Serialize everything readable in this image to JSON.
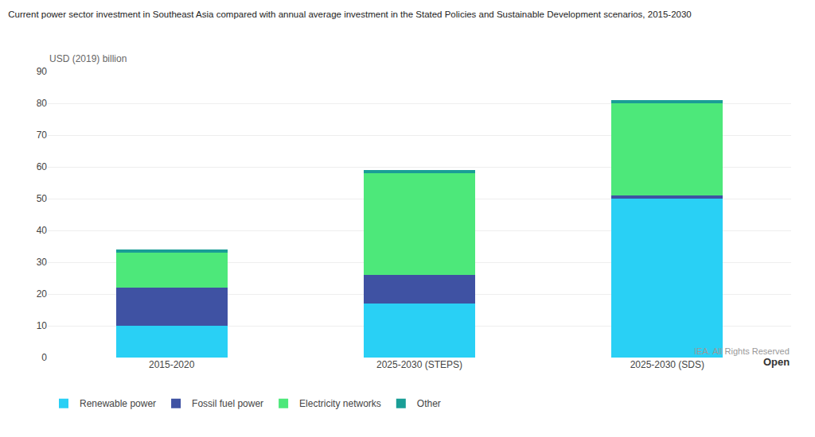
{
  "chart_data": {
    "type": "bar",
    "stacked": true,
    "title": "Current power sector investment in Southeast Asia compared with annual average investment in the Stated Policies and Sustainable Development scenarios, 2015-2030",
    "ylabel": "USD (2019) billion",
    "annotations": [
      "Open",
      "IEA. All Rights Reserved"
    ],
    "categories": [
      "2015-2020",
      "2025-2030 (STEPS)",
      "2025-2030 (SDS)"
    ],
    "series": [
      {
        "name": "Renewable power",
        "color": "#29d0f5",
        "values": [
          10,
          17,
          50
        ]
      },
      {
        "name": "Fossil fuel power",
        "color": "#3f52a3",
        "values": [
          12,
          9,
          1
        ]
      },
      {
        "name": "Electricity networks",
        "color": "#4de87a",
        "values": [
          11,
          32,
          29
        ]
      },
      {
        "name": "Other",
        "color": "#1a9e96",
        "values": [
          1,
          1,
          1
        ]
      }
    ],
    "ylim": [
      0,
      90
    ],
    "yticks": [
      0,
      10,
      20,
      30,
      40,
      50,
      60,
      70,
      80,
      90
    ],
    "grid": true,
    "legend": "lower left"
  }
}
